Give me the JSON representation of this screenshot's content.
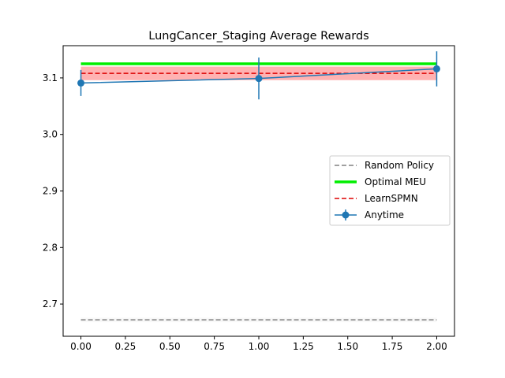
{
  "chart_data": {
    "type": "line",
    "title": "LungCancer_Staging Average Rewards",
    "xlabel": "",
    "ylabel": "",
    "xlim": [
      -0.1,
      2.1
    ],
    "ylim": [
      2.643,
      3.157
    ],
    "x_ticks": [
      0.0,
      0.25,
      0.5,
      0.75,
      1.0,
      1.25,
      1.5,
      1.75,
      2.0
    ],
    "x_tick_labels": [
      "0.00",
      "0.25",
      "0.50",
      "0.75",
      "1.00",
      "1.25",
      "1.50",
      "1.75",
      "2.00"
    ],
    "y_ticks": [
      2.7,
      2.8,
      2.9,
      3.0,
      3.1
    ],
    "y_tick_labels": [
      "2.7",
      "2.8",
      "2.9",
      "3.0",
      "3.1"
    ],
    "grid": false,
    "legend_position": "center-right",
    "series": [
      {
        "name": "Random Policy",
        "style": "dashed",
        "color": "#808080",
        "x": [
          0,
          2
        ],
        "y": [
          2.672,
          2.672
        ],
        "band": [
          2.668,
          2.676
        ]
      },
      {
        "name": "Optimal MEU",
        "style": "solid-thick",
        "color": "#00ee00",
        "x": [
          0,
          2
        ],
        "y": [
          3.125,
          3.125
        ]
      },
      {
        "name": "LearnSPMN",
        "style": "dashed",
        "color": "#dd0000",
        "x": [
          0,
          2
        ],
        "y": [
          3.108,
          3.108
        ],
        "band": [
          3.096,
          3.12
        ]
      },
      {
        "name": "Anytime",
        "style": "line-markers-errorbars",
        "color": "#1f77b4",
        "x": [
          0,
          1,
          2
        ],
        "y": [
          3.091,
          3.099,
          3.116
        ],
        "yerr": [
          0.023,
          0.037,
          0.031
        ]
      }
    ]
  }
}
